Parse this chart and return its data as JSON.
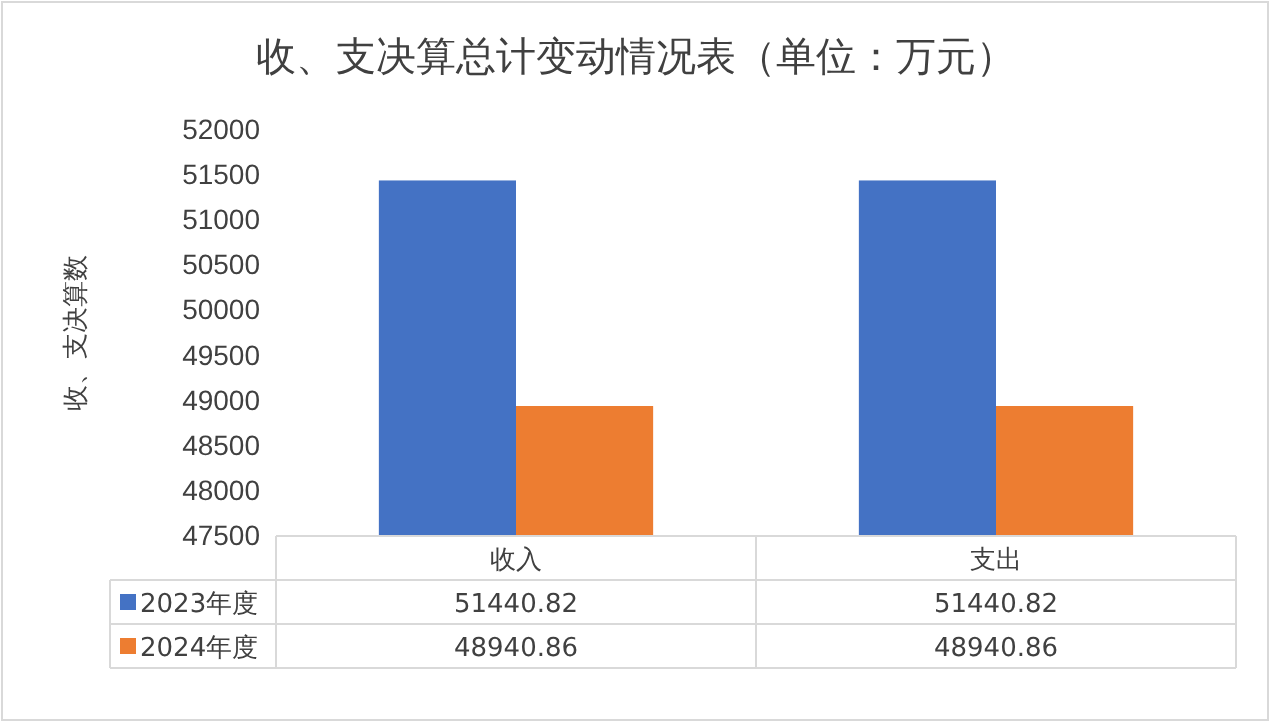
{
  "chart_data": {
    "type": "bar",
    "title": "收、支决算总计变动情况表（单位：万元）",
    "ylabel": "收、支决算数",
    "categories": [
      "收入",
      "支出"
    ],
    "series": [
      {
        "name": "2023年度",
        "color": "#4472c4",
        "values": [
          51440.82,
          51440.82
        ]
      },
      {
        "name": "2024年度",
        "color": "#ed7d31",
        "values": [
          48940.86,
          48940.86
        ]
      }
    ],
    "ylim": [
      47500,
      52000
    ],
    "yticks": [
      47500,
      48000,
      48500,
      49000,
      49500,
      50000,
      50500,
      51000,
      51500,
      52000
    ],
    "data_labels": true,
    "legend": "bottom"
  }
}
